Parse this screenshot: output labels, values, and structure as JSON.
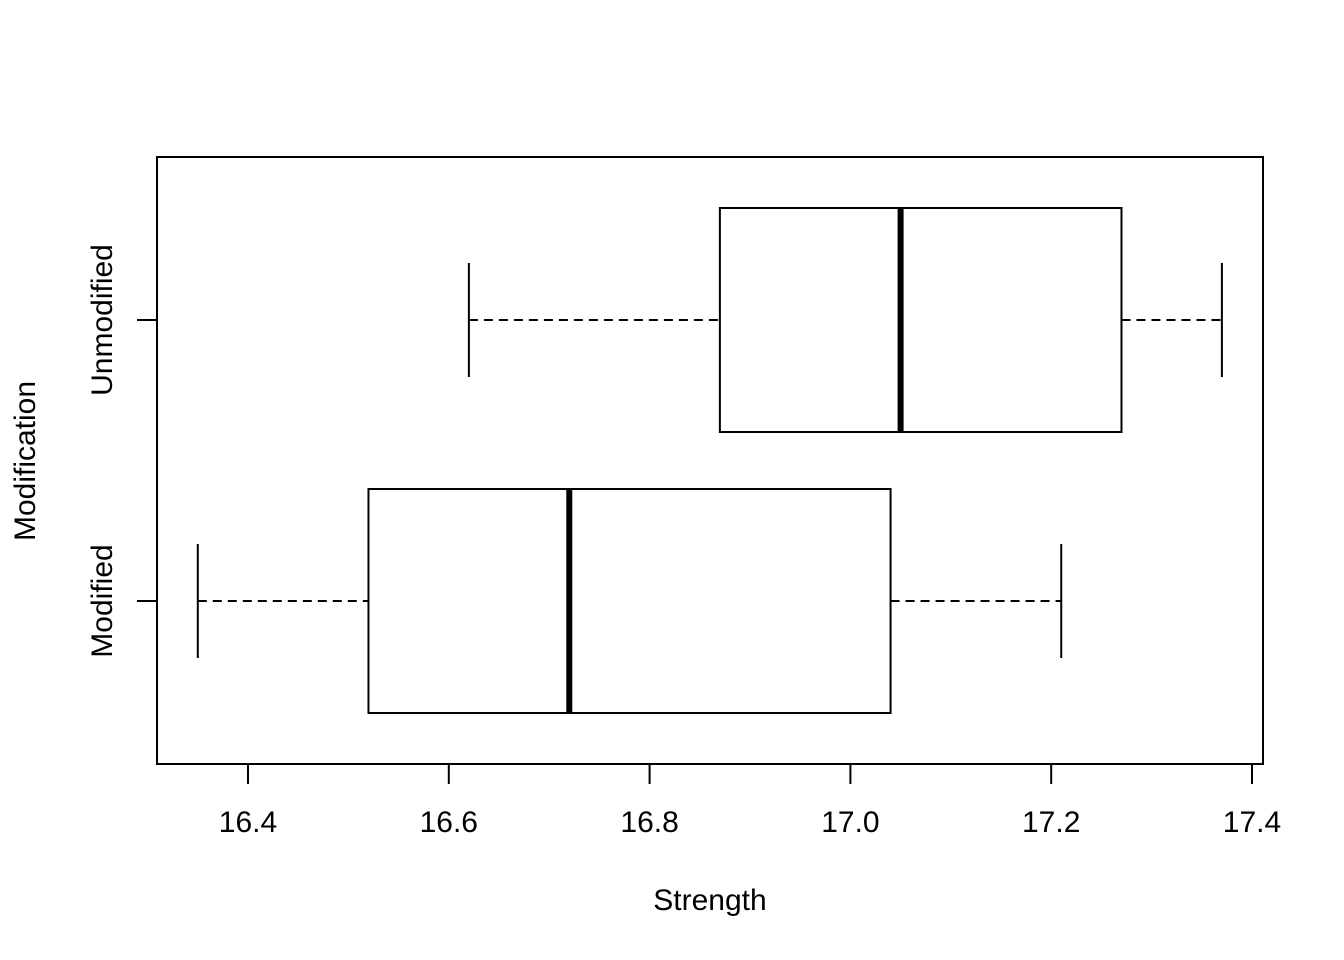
{
  "chart_data": {
    "type": "boxplot",
    "orientation": "horizontal",
    "title": "",
    "xlabel": "Strength",
    "ylabel": "Modification",
    "xlim": [
      16.31,
      17.41
    ],
    "x_ticks": [
      "16.4",
      "16.6",
      "16.8",
      "17.0",
      "17.2",
      "17.4"
    ],
    "grid": false,
    "categories": [
      "Modified",
      "Unmodified"
    ],
    "boxes": [
      {
        "category": "Modified",
        "whisker_low": 16.35,
        "q1": 16.52,
        "median": 16.72,
        "q3": 17.04,
        "whisker_high": 17.21
      },
      {
        "category": "Unmodified",
        "whisker_low": 16.62,
        "q1": 16.87,
        "median": 17.05,
        "q3": 17.27,
        "whisker_high": 17.37
      }
    ]
  }
}
